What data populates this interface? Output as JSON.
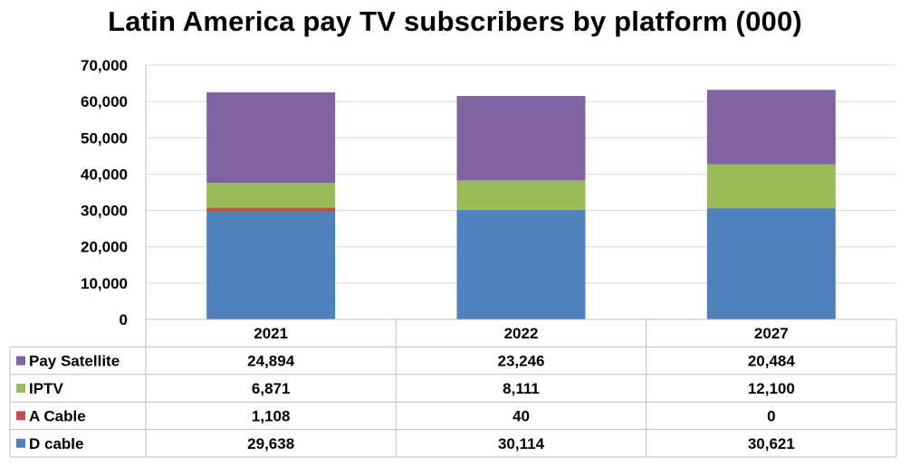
{
  "chart_data": {
    "type": "bar",
    "stacked": true,
    "title": "Latin America pay TV subscribers by platform (000)",
    "categories": [
      "2021",
      "2022",
      "2027"
    ],
    "series": [
      {
        "name": "D cable",
        "color": "#4F81BD",
        "values": [
          29638,
          30114,
          30621
        ],
        "labels": [
          "29,638",
          "30,114",
          "30,621"
        ]
      },
      {
        "name": "A Cable",
        "color": "#C0504D",
        "values": [
          1108,
          40,
          0
        ],
        "labels": [
          "1,108",
          "40",
          "0"
        ]
      },
      {
        "name": "IPTV",
        "color": "#9BBB59",
        "values": [
          6871,
          8111,
          12100
        ],
        "labels": [
          "6,871",
          "8,111",
          "12,100"
        ]
      },
      {
        "name": "Pay Satellite",
        "color": "#8064A2",
        "values": [
          24894,
          23246,
          20484
        ],
        "labels": [
          "24,894",
          "23,246",
          "20,484"
        ]
      }
    ],
    "table_order": [
      "Pay Satellite",
      "IPTV",
      "A Cable",
      "D cable"
    ],
    "ylim": [
      0,
      70000
    ],
    "yticks": [
      0,
      10000,
      20000,
      30000,
      40000,
      50000,
      60000,
      70000
    ],
    "ytick_labels": [
      "0",
      "10,000",
      "20,000",
      "30,000",
      "40,000",
      "50,000",
      "60,000",
      "70,000"
    ],
    "grid": true,
    "data_table": true
  }
}
